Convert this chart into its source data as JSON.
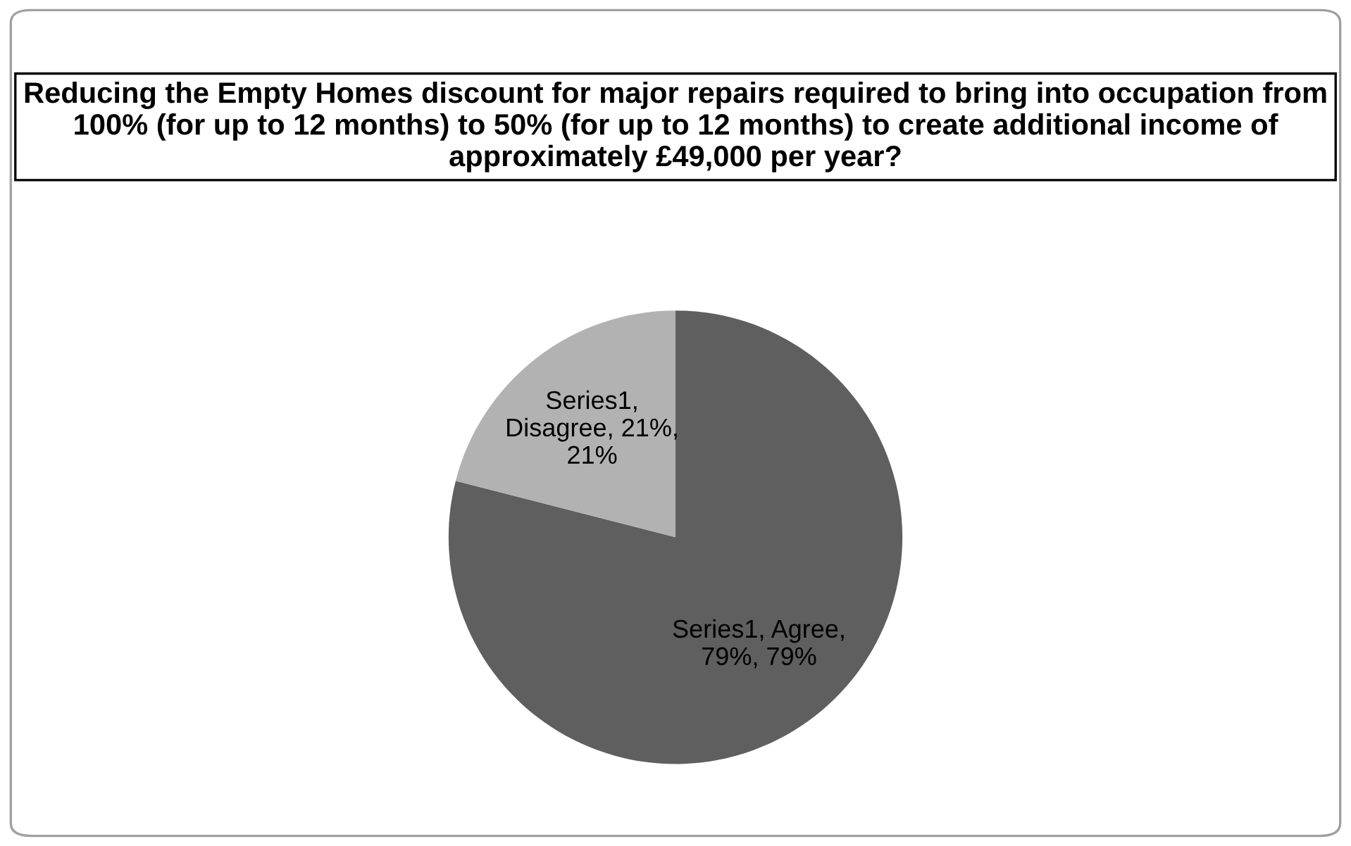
{
  "chart_data": {
    "type": "pie",
    "title": "Reducing the Empty Homes discount for major repairs required to bring into occupation from 100% (for up to 12 months) to 50% (for up to 12 months) to create additional income of approximately £49,000 per year?",
    "values": [
      79,
      21
    ],
    "colors": [
      "#5f5f5f",
      "#b2b2b2"
    ],
    "value_labels": [
      "Series1, Agree,\n79%, 79%",
      "Series1,\nDisagree, 21%,\n21%"
    ]
  }
}
